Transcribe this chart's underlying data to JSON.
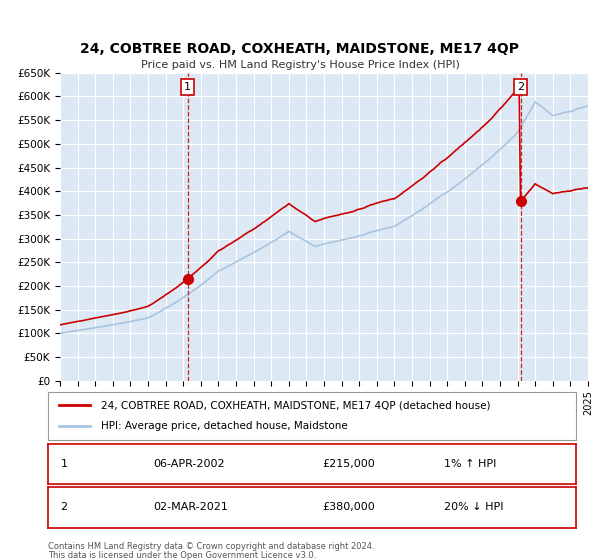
{
  "title": "24, COBTREE ROAD, COXHEATH, MAIDSTONE, ME17 4QP",
  "subtitle": "Price paid vs. HM Land Registry's House Price Index (HPI)",
  "xlabel": "",
  "ylabel": "",
  "background_color": "#ffffff",
  "plot_background_color": "#dce9f5",
  "grid_color": "#ffffff",
  "sale1_date": 2002.27,
  "sale1_price": 215000,
  "sale1_label": "1",
  "sale2_date": 2021.16,
  "sale2_price": 380000,
  "sale2_label": "2",
  "legend_entry1": "24, COBTREE ROAD, COXHEATH, MAIDSTONE, ME17 4QP (detached house)",
  "legend_entry2": "HPI: Average price, detached house, Maidstone",
  "table_row1": [
    "1",
    "06-APR-2002",
    "£215,000",
    "1% ↑ HPI"
  ],
  "table_row2": [
    "2",
    "02-MAR-2021",
    "£380,000",
    "20% ↓ HPI"
  ],
  "footer1": "Contains HM Land Registry data © Crown copyright and database right 2024.",
  "footer2": "This data is licensed under the Open Government Licence v3.0.",
  "hpi_line_color": "#a8c4e0",
  "price_line_color": "#cc0000",
  "sale_marker_color": "#cc0000",
  "vline_color": "#cc0000",
  "ylim_max": 650000,
  "ylim_min": 0,
  "xlim_min": 1995,
  "xlim_max": 2025
}
